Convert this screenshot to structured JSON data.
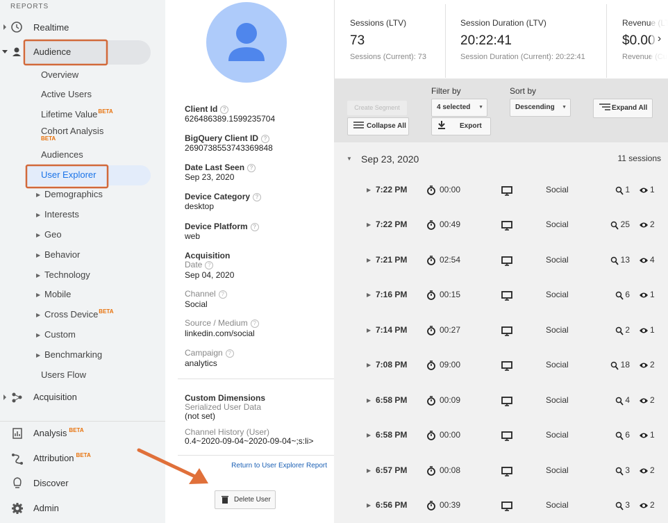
{
  "sidebar": {
    "section_label": "REPORTS",
    "top_items": [
      {
        "label": "Realtime"
      },
      {
        "label": "Audience"
      }
    ],
    "audience_items": [
      {
        "label": "Overview"
      },
      {
        "label": "Active Users"
      },
      {
        "label": "Lifetime Value",
        "badge": "BETA"
      },
      {
        "label": "Cohort Analysis",
        "badge": "BETA"
      },
      {
        "label": "Audiences"
      },
      {
        "label": "User Explorer"
      },
      {
        "label": "Demographics"
      },
      {
        "label": "Interests"
      },
      {
        "label": "Geo"
      },
      {
        "label": "Behavior"
      },
      {
        "label": "Technology"
      },
      {
        "label": "Mobile"
      },
      {
        "label": "Cross Device",
        "badge": "BETA"
      },
      {
        "label": "Custom"
      },
      {
        "label": "Benchmarking"
      },
      {
        "label": "Users Flow"
      }
    ],
    "acquisition": "Acquisition",
    "bottom_items": [
      {
        "label": "Analysis",
        "badge": "BETA"
      },
      {
        "label": "Attribution",
        "badge": "BETA"
      },
      {
        "label": "Discover"
      },
      {
        "label": "Admin"
      }
    ]
  },
  "profile": {
    "fields": [
      {
        "label": "Client Id",
        "value": "626486389.1599235704"
      },
      {
        "label": "BigQuery Client ID",
        "value": "2690738553743369848"
      },
      {
        "label": "Date Last Seen",
        "value": "Sep 23, 2020"
      },
      {
        "label": "Device Category",
        "value": "desktop"
      },
      {
        "label": "Device Platform",
        "value": "web"
      }
    ],
    "acquisition": {
      "title": "Acquisition",
      "fields": [
        {
          "label": "Date",
          "value": "Sep 04, 2020"
        },
        {
          "label": "Channel",
          "value": "Social"
        },
        {
          "label": "Source / Medium",
          "value": "linkedin.com/social"
        },
        {
          "label": "Campaign",
          "value": "analytics"
        }
      ]
    },
    "custom_dimensions": {
      "title": "Custom Dimensions",
      "fields": [
        {
          "label": "Serialized User Data",
          "value": "(not set)"
        },
        {
          "label": "Channel History (User)",
          "value": "0.4~2020-09-04~2020-09-04~;s:li>"
        }
      ]
    },
    "return_link": "Return to User Explorer Report",
    "delete_button": "Delete User"
  },
  "stats": [
    {
      "label": "Sessions (LTV)",
      "value": "73",
      "current": "Sessions (Current): 73"
    },
    {
      "label": "Session Duration (LTV)",
      "value": "20:22:41",
      "current": "Session Duration (Current): 20:22:41"
    },
    {
      "label": "Revenue (LTV)",
      "value": "$0.00",
      "current": "Revenue (Current)"
    }
  ],
  "toolbar": {
    "create_segment": "Create Segment",
    "collapse_all": "Collapse All",
    "filter_label": "Filter by",
    "filter_value": "4 selected",
    "export": "Export",
    "sort_label": "Sort by",
    "sort_value": "Descending",
    "expand_all": "Expand All"
  },
  "sessions": {
    "date": "Sep 23, 2020",
    "count_label": "11 sessions",
    "rows": [
      {
        "time": "7:22 PM",
        "duration": "00:00",
        "channel": "Social",
        "hits": 1,
        "views": 1
      },
      {
        "time": "7:22 PM",
        "duration": "00:49",
        "channel": "Social",
        "hits": 25,
        "views": 2
      },
      {
        "time": "7:21 PM",
        "duration": "02:54",
        "channel": "Social",
        "hits": 13,
        "views": 4
      },
      {
        "time": "7:16 PM",
        "duration": "00:15",
        "channel": "Social",
        "hits": 6,
        "views": 1
      },
      {
        "time": "7:14 PM",
        "duration": "00:27",
        "channel": "Social",
        "hits": 2,
        "views": 1
      },
      {
        "time": "7:08 PM",
        "duration": "09:00",
        "channel": "Social",
        "hits": 18,
        "views": 2
      },
      {
        "time": "6:58 PM",
        "duration": "00:09",
        "channel": "Social",
        "hits": 4,
        "views": 2
      },
      {
        "time": "6:58 PM",
        "duration": "00:00",
        "channel": "Social",
        "hits": 6,
        "views": 1
      },
      {
        "time": "6:57 PM",
        "duration": "00:08",
        "channel": "Social",
        "hits": 3,
        "views": 2
      },
      {
        "time": "6:56 PM",
        "duration": "00:39",
        "channel": "Social",
        "hits": 3,
        "views": 2
      }
    ]
  }
}
